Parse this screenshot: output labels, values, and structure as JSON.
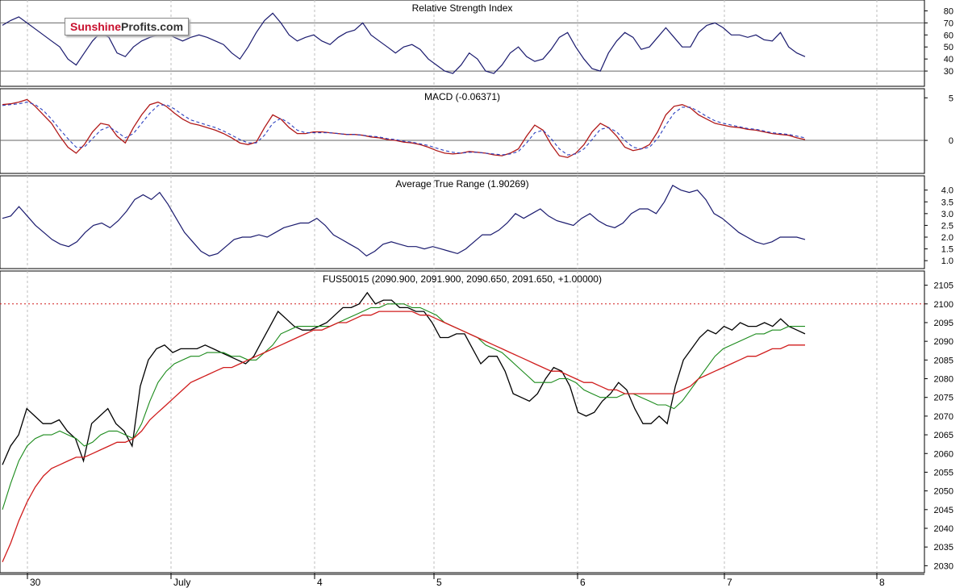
{
  "brand": {
    "part1": "Sunshine",
    "part2": "Profits.com"
  },
  "colors": {
    "price": "#000000",
    "ma_short": "#1a8a1a",
    "ma_long": "#d01c1c",
    "indicator": "#1a1a6e",
    "macd_signal": "#2a3fbf",
    "macd_line": "#b01818",
    "grid": "#bdbdbd",
    "ref_line": "#666666",
    "resistance": "#d01c1c"
  },
  "x_axis": {
    "labels": [
      "30",
      "July",
      "4",
      "5",
      "6",
      "7",
      "8"
    ]
  },
  "chart_data": [
    {
      "type": "line",
      "title": "Relative Strength Index",
      "ylim": [
        20,
        85
      ],
      "yticks": [
        "80",
        "70",
        "60",
        "50",
        "40",
        "30"
      ],
      "ref_lines": [
        70,
        30
      ],
      "series": [
        {
          "name": "",
          "values": [
            68,
            72,
            75,
            70,
            65,
            60,
            55,
            50,
            40,
            35,
            45,
            55,
            62,
            58,
            45,
            42,
            50,
            55,
            58,
            60,
            62,
            58,
            55,
            58,
            60,
            58,
            55,
            52,
            45,
            40,
            50,
            62,
            72,
            78,
            70,
            60,
            55,
            58,
            60,
            55,
            52,
            58,
            62,
            64,
            70,
            60,
            55,
            50,
            45,
            50,
            52,
            48,
            40,
            35,
            30,
            28,
            35,
            45,
            40,
            30,
            28,
            35,
            45,
            50,
            42,
            38,
            40,
            48,
            58,
            62,
            50,
            40,
            32,
            30,
            45,
            55,
            62,
            58,
            48,
            50,
            58,
            66,
            58,
            50,
            50,
            62,
            68,
            70,
            66,
            60,
            60,
            58,
            60,
            56,
            55,
            62,
            50,
            45,
            42
          ]
        }
      ]
    },
    {
      "type": "line",
      "title": "MACD (-0.06371)",
      "ylim": [
        -3.5,
        5.5
      ],
      "yticks": [
        "5",
        "0"
      ],
      "ref_lines": [
        0
      ],
      "series": [
        {
          "name": "",
          "values": [
            4.2,
            4.3,
            4.5,
            4.8,
            4.0,
            3.0,
            2.0,
            0.5,
            -0.8,
            -1.5,
            -0.5,
            1.0,
            2.0,
            1.8,
            0.5,
            -0.3,
            1.5,
            3.0,
            4.2,
            4.5,
            4.0,
            3.2,
            2.5,
            2.0,
            1.8,
            1.5,
            1.2,
            0.8,
            0.3,
            -0.3,
            -0.5,
            -0.2,
            1.5,
            3.0,
            2.5,
            1.5,
            0.8,
            0.8,
            1.0,
            1.0,
            0.9,
            0.8,
            0.7,
            0.7,
            0.6,
            0.4,
            0.3,
            0.1,
            0.0,
            -0.2,
            -0.3,
            -0.5,
            -0.8,
            -1.2,
            -1.5,
            -1.6,
            -1.5,
            -1.3,
            -1.4,
            -1.5,
            -1.7,
            -1.8,
            -1.5,
            -1.0,
            0.5,
            1.8,
            1.2,
            -0.5,
            -1.8,
            -2.0,
            -1.5,
            -0.5,
            1.0,
            2.0,
            1.5,
            0.5,
            -0.8,
            -1.2,
            -1.0,
            -0.5,
            1.0,
            3.0,
            4.0,
            4.2,
            3.8,
            3.0,
            2.5,
            2.0,
            1.8,
            1.6,
            1.5,
            1.3,
            1.2,
            1.0,
            0.8,
            0.7,
            0.6,
            0.3,
            0.1
          ]
        },
        {
          "name": "",
          "values": [
            4.1,
            4.2,
            4.3,
            4.5,
            4.2,
            3.5,
            2.5,
            1.3,
            0.2,
            -0.8,
            -0.8,
            0.2,
            1.2,
            1.6,
            1.0,
            0.3,
            0.8,
            2.0,
            3.2,
            4.1,
            4.2,
            3.7,
            3.0,
            2.4,
            2.1,
            1.8,
            1.5,
            1.1,
            0.6,
            0.1,
            -0.3,
            -0.3,
            0.6,
            2.0,
            2.6,
            2.0,
            1.2,
            0.9,
            0.9,
            0.9,
            0.9,
            0.8,
            0.7,
            0.7,
            0.6,
            0.5,
            0.4,
            0.2,
            0.1,
            -0.1,
            -0.2,
            -0.4,
            -0.6,
            -0.9,
            -1.2,
            -1.4,
            -1.5,
            -1.4,
            -1.4,
            -1.5,
            -1.6,
            -1.7,
            -1.6,
            -1.3,
            -0.3,
            0.9,
            1.2,
            0.2,
            -1.0,
            -1.7,
            -1.6,
            -1.0,
            0.1,
            1.3,
            1.5,
            1.0,
            0.0,
            -0.8,
            -1.0,
            -0.8,
            0.2,
            1.8,
            3.2,
            3.9,
            3.9,
            3.4,
            2.8,
            2.3,
            2.0,
            1.8,
            1.6,
            1.4,
            1.3,
            1.1,
            0.9,
            0.8,
            0.7,
            0.5,
            0.3
          ]
        }
      ]
    },
    {
      "type": "line",
      "title": "Average True Range (1.90269)",
      "ylim": [
        0.8,
        4.4
      ],
      "yticks": [
        "4.0",
        "3.5",
        "3.0",
        "2.5",
        "2.0",
        "1.5",
        "1.0"
      ],
      "series": [
        {
          "name": "",
          "values": [
            2.8,
            2.9,
            3.3,
            2.9,
            2.5,
            2.2,
            1.9,
            1.7,
            1.6,
            1.8,
            2.2,
            2.5,
            2.6,
            2.4,
            2.7,
            3.1,
            3.6,
            3.8,
            3.6,
            3.9,
            3.4,
            2.8,
            2.2,
            1.8,
            1.4,
            1.2,
            1.3,
            1.6,
            1.9,
            2.0,
            2.0,
            2.1,
            2.0,
            2.2,
            2.4,
            2.5,
            2.6,
            2.6,
            2.8,
            2.5,
            2.1,
            1.9,
            1.7,
            1.5,
            1.2,
            1.4,
            1.7,
            1.8,
            1.7,
            1.6,
            1.6,
            1.5,
            1.6,
            1.5,
            1.4,
            1.3,
            1.5,
            1.8,
            2.1,
            2.1,
            2.3,
            2.6,
            3.0,
            2.8,
            3.0,
            3.2,
            2.9,
            2.7,
            2.6,
            2.5,
            2.8,
            3.0,
            2.7,
            2.5,
            2.4,
            2.6,
            3.0,
            3.2,
            3.2,
            3.0,
            3.5,
            4.2,
            4.0,
            3.9,
            4.0,
            3.6,
            3.0,
            2.8,
            2.5,
            2.2,
            2.0,
            1.8,
            1.7,
            1.8,
            2.0,
            2.0,
            2.0,
            1.9
          ]
        }
      ]
    },
    {
      "type": "line",
      "title": "FUS50015 (2090.900, 2091.900, 2090.650, 2091.650, +1.00000)",
      "ylim": [
        2029,
        2107.5
      ],
      "yticks": [
        "2105",
        "2100",
        "2095",
        "2090",
        "2085",
        "2080",
        "2075",
        "2070",
        "2065",
        "2060",
        "2055",
        "2050",
        "2045",
        "2040",
        "2035",
        "2030"
      ],
      "ref_lines": [
        2100
      ],
      "series": [
        {
          "name": "",
          "values": [
            2057,
            2062,
            2065,
            2072,
            2070,
            2068,
            2068,
            2069,
            2066,
            2064,
            2058,
            2068,
            2070,
            2072,
            2068,
            2066,
            2062,
            2078,
            2085,
            2088,
            2089,
            2087,
            2088,
            2088,
            2088,
            2089,
            2088,
            2087,
            2086,
            2085,
            2084,
            2086,
            2090,
            2094,
            2098,
            2096,
            2094,
            2093,
            2093,
            2094,
            2095,
            2097,
            2099,
            2099,
            2100,
            2103,
            2100,
            2101,
            2101,
            2099,
            2099,
            2098,
            2098,
            2095,
            2091,
            2091,
            2092,
            2092,
            2088,
            2084,
            2086,
            2086,
            2082,
            2076,
            2075,
            2074,
            2076,
            2080,
            2083,
            2082,
            2078,
            2071,
            2070,
            2071,
            2074,
            2076,
            2079,
            2077,
            2072,
            2068,
            2068,
            2070,
            2068,
            2078,
            2085,
            2088,
            2091,
            2093,
            2092,
            2094,
            2093,
            2095,
            2094,
            2094,
            2095,
            2094,
            2096,
            2094,
            2093,
            2092
          ]
        },
        {
          "name": "",
          "values": [
            2045,
            2052,
            2058,
            2062,
            2064,
            2065,
            2065,
            2066,
            2065,
            2064,
            2062,
            2063,
            2065,
            2066,
            2066,
            2065,
            2064,
            2068,
            2074,
            2079,
            2082,
            2084,
            2085,
            2086,
            2086,
            2087,
            2087,
            2087,
            2086,
            2086,
            2085,
            2085,
            2087,
            2089,
            2092,
            2093,
            2094,
            2094,
            2094,
            2094,
            2094,
            2095,
            2096,
            2097,
            2098,
            2099,
            2099,
            2100,
            2100,
            2100,
            2099,
            2099,
            2098,
            2097,
            2095,
            2094,
            2093,
            2092,
            2091,
            2089,
            2088,
            2087,
            2085,
            2083,
            2081,
            2079,
            2079,
            2079,
            2080,
            2080,
            2079,
            2077,
            2076,
            2075,
            2075,
            2075,
            2076,
            2076,
            2075,
            2074,
            2073,
            2073,
            2072,
            2074,
            2077,
            2080,
            2083,
            2086,
            2088,
            2089,
            2090,
            2091,
            2092,
            2092,
            2093,
            2093,
            2094,
            2094,
            2094
          ]
        },
        {
          "name": "",
          "values": [
            2031,
            2036,
            2042,
            2047,
            2051,
            2054,
            2056,
            2057,
            2058,
            2059,
            2059,
            2060,
            2061,
            2062,
            2063,
            2063,
            2064,
            2066,
            2069,
            2071,
            2073,
            2075,
            2077,
            2079,
            2080,
            2081,
            2082,
            2083,
            2083,
            2084,
            2085,
            2086,
            2087,
            2088,
            2089,
            2090,
            2091,
            2092,
            2093,
            2093,
            2094,
            2095,
            2095,
            2096,
            2097,
            2097,
            2098,
            2098,
            2098,
            2098,
            2098,
            2097,
            2097,
            2096,
            2095,
            2094,
            2093,
            2092,
            2091,
            2090,
            2089,
            2088,
            2087,
            2086,
            2085,
            2084,
            2083,
            2082,
            2082,
            2081,
            2080,
            2079,
            2079,
            2078,
            2077,
            2077,
            2076,
            2076,
            2076,
            2076,
            2076,
            2076,
            2076,
            2077,
            2078,
            2080,
            2081,
            2082,
            2083,
            2084,
            2085,
            2086,
            2086,
            2087,
            2088,
            2088,
            2089,
            2089,
            2089
          ]
        }
      ]
    }
  ]
}
